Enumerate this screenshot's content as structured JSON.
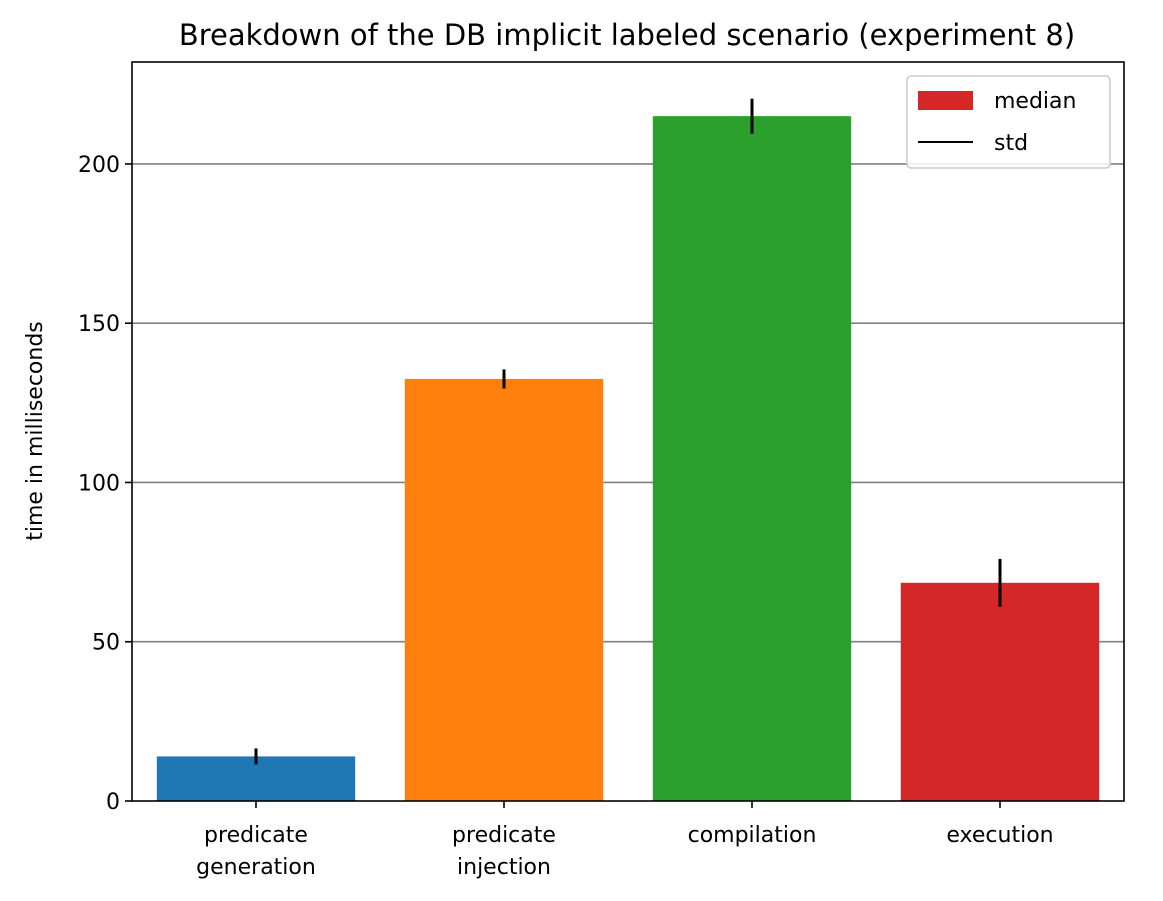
{
  "chart_data": {
    "type": "bar",
    "title": "Breakdown of the DB implicit labeled scenario (experiment 8)",
    "xlabel": "",
    "ylabel": "time in milliseconds",
    "categories": [
      [
        "predicate",
        "generation"
      ],
      [
        "predicate",
        "injection"
      ],
      [
        "compilation"
      ],
      [
        "execution"
      ]
    ],
    "values": [
      14,
      132.5,
      215,
      68.5
    ],
    "errors": [
      2.5,
      3,
      5.5,
      7.5
    ],
    "bar_colors": [
      "#1f77b4",
      "#ff7f0e",
      "#2ca02c",
      "#d62728"
    ],
    "ylim": [
      0,
      232
    ],
    "yticks": [
      0,
      50,
      100,
      150,
      200
    ],
    "grid": "y",
    "legend": {
      "placement": "top-right",
      "entries": [
        {
          "label": "median",
          "kind": "patch",
          "color": "#d62728"
        },
        {
          "label": "std",
          "kind": "line",
          "color": "#000000"
        }
      ]
    }
  }
}
